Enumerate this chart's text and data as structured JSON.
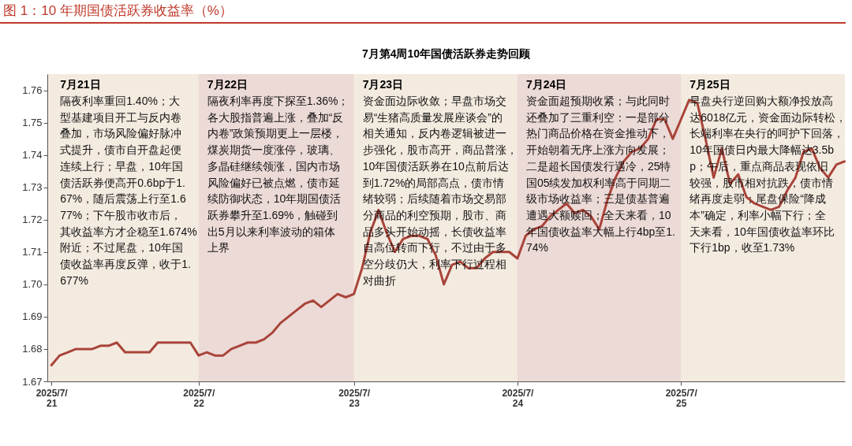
{
  "chart_data": {
    "type": "line",
    "title": "图 1：10 年期国债活跃券收益率（%）",
    "subtitle": "7月第4周10年国债活跃券走势回顾",
    "categories": [
      "2025/7/21",
      null,
      null,
      null,
      null,
      null,
      null,
      null,
      null,
      null,
      null,
      null,
      null,
      null,
      null,
      null,
      null,
      null,
      "2025/7/22",
      null,
      null,
      null,
      null,
      null,
      null,
      null,
      null,
      null,
      null,
      null,
      null,
      null,
      null,
      null,
      null,
      null,
      null,
      "2025/7/23",
      null,
      null,
      null,
      null,
      null,
      null,
      null,
      null,
      null,
      null,
      null,
      null,
      null,
      null,
      null,
      null,
      null,
      null,
      null,
      "2025/7/24",
      null,
      null,
      null,
      null,
      null,
      null,
      null,
      null,
      null,
      null,
      null,
      null,
      null,
      null,
      null,
      null,
      null,
      null,
      null,
      "2025/7/25",
      null,
      null,
      null,
      null,
      null,
      null,
      null,
      null,
      null,
      null,
      null,
      null,
      null,
      null,
      null,
      null,
      null,
      null,
      null,
      null
    ],
    "ylim": [
      1.67,
      1.765
    ],
    "yticks": [
      1.67,
      1.68,
      1.69,
      {
        "value": 1.7,
        "label": "1.70"
      },
      1.71,
      1.72,
      1.73,
      1.74,
      1.75,
      1.76
    ],
    "grid": false,
    "marker": "none",
    "line_style": "solid",
    "series": [
      {
        "color": "#a9443a",
        "values": [
          1.675,
          1.678,
          1.679,
          1.68,
          1.68,
          1.68,
          1.681,
          1.681,
          1.682,
          1.679,
          1.679,
          1.679,
          1.679,
          1.682,
          1.682,
          1.682,
          1.682,
          1.682,
          1.678,
          1.679,
          1.678,
          1.678,
          1.68,
          1.681,
          1.682,
          1.682,
          1.683,
          1.685,
          1.688,
          1.69,
          1.692,
          1.694,
          1.695,
          1.693,
          1.695,
          1.697,
          1.696,
          1.697,
          1.705,
          1.716,
          1.723,
          1.716,
          1.71,
          1.714,
          1.715,
          1.715,
          1.714,
          1.709,
          1.7,
          1.706,
          1.707,
          1.705,
          1.705,
          1.708,
          1.71,
          1.71,
          1.71,
          1.708,
          1.715,
          1.717,
          1.718,
          1.721,
          1.723,
          1.725,
          1.722,
          1.723,
          1.721,
          1.717,
          1.726,
          1.733,
          1.738,
          1.741,
          1.742,
          1.745,
          1.751,
          1.751,
          1.745,
          1.751,
          1.757,
          1.756,
          1.745,
          1.733,
          1.742,
          1.731,
          1.734,
          1.727,
          1.725,
          1.724,
          1.723,
          1.724,
          1.729,
          1.733,
          1.741,
          1.742,
          1.736,
          1.733,
          1.737,
          1.738
        ]
      }
    ],
    "bands": [
      {
        "axis": "x",
        "from": "2025/7/22",
        "to": "2025/7/23",
        "color": "#ecdad7"
      },
      {
        "axis": "x",
        "from": "2025/7/24",
        "to": "2025/7/25",
        "color": "#ecdad7"
      }
    ],
    "annotations": [
      "7月21日",
      "隔夜利率重回1.40%；大型基建项目开工与反内卷叠加，市场风险偏好脉冲式提升，债市自开盘起便连续上行；早盘，10年国债活跃券便高开0.6bp于1.67%，随后震荡上行至1.677%；下午股市收市后，其收益率方才企稳至1.674%附近；不过尾盘，10年国债收益率再度反弹，收于1.677%",
      "7月22日",
      "隔夜利率再度下探至1.36%；各大股指普遍上涨，叠加“反内卷”政策预期更上一层楼，煤炭期货一度涨停，玻璃、多晶硅继续领涨，国内市场风险偏好已被点燃，债市延续防御状态，10年期国债活跃券攀升至1.69%，触碰到出5月以来利率波动的箱体上界",
      "7月23日",
      "资金面边际收敛；早盘市场交易“生猪高质量发展座谈会”的相关通知，反内卷逻辑被进一步强化，股市高开，商品普涨，10年国债活跃券在10点前后达到1.72%的局部高点，债市情绪较弱；后续随着市场交易部分商品的利空预期，股市、商品多头开始动摇，长债收益率自高位转而下行，不过由于多空分歧仍大，利率下行过程相对曲折",
      "7月24日",
      "资金面超预期收紧；与此同时还叠加了三重利空：一是部分热门商品价格在资金推动下，开始朝着无序上涨方向发展；二是超长国债发行遇冷，25特国05续发加权利率高于同期二级市场收益率；三是债基普遍遭遇大额赎回；全天来看，10年国债收益率大幅上行4bp至1.74%",
      "7月25日",
      "早盘央行逆回购大额净投放高达6018亿元，资金面边际转松，长端利率在央行的呵护下回落，10年国债日内最大降幅达3.5bp；午后，重点商品表现依旧较强，股市相对抗跌，债市情绪再度走弱；尾盘保险“降成本”确定，利率小幅下行；全天来看，10年国债收益率环比下行1bp，收至1.73%"
    ]
  }
}
